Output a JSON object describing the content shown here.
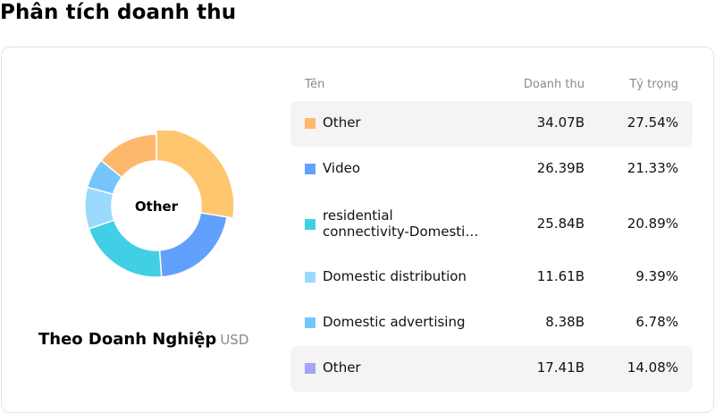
{
  "page": {
    "title": "Phân tích doanh thu"
  },
  "donut": {
    "center_label": "Other",
    "caption_title": "Theo Doanh Nghiệp",
    "caption_unit": "USD"
  },
  "table": {
    "headers": {
      "name": "Tên",
      "revenue": "Doanh thu",
      "share": "Tỷ trọng"
    },
    "rows": [
      {
        "name": "Other",
        "name_line2": "",
        "revenue": "34.07B",
        "share": "27.54%",
        "color": "#fdb86b",
        "highlighted": true
      },
      {
        "name": "Video",
        "name_line2": "",
        "revenue": "26.39B",
        "share": "21.33%",
        "color": "#62a0fd",
        "highlighted": false
      },
      {
        "name": "residential",
        "name_line2": "connectivity-Domesti…",
        "revenue": "25.84B",
        "share": "20.89%",
        "color": "#41cfe6",
        "highlighted": false
      },
      {
        "name": "Domestic distribution",
        "name_line2": "",
        "revenue": "11.61B",
        "share": "9.39%",
        "color": "#9adafc",
        "highlighted": false
      },
      {
        "name": "Domestic advertising",
        "name_line2": "",
        "revenue": "8.38B",
        "share": "6.78%",
        "color": "#76c4fc",
        "highlighted": false
      },
      {
        "name": "Other",
        "name_line2": "",
        "revenue": "17.41B",
        "share": "14.08%",
        "color": "#a7a4f8",
        "highlighted": true
      }
    ]
  },
  "chart_data": {
    "type": "pie",
    "subtype": "donut",
    "title": "Theo Doanh Nghiệp",
    "unit": "USD",
    "center_label": "Other",
    "categories": [
      "Other",
      "Video",
      "residential connectivity-Domesti…",
      "Domestic distribution",
      "Domestic advertising",
      "Other"
    ],
    "values": [
      34.07,
      26.39,
      25.84,
      11.61,
      8.38,
      17.41
    ],
    "value_labels": [
      "34.07B",
      "26.39B",
      "25.84B",
      "11.61B",
      "8.38B",
      "17.41B"
    ],
    "percentages": [
      27.54,
      21.33,
      20.89,
      9.39,
      6.78,
      14.08
    ],
    "slice_colors": [
      "#ffc670",
      "#62a0fd",
      "#41cfe6",
      "#9adafc",
      "#76c4fc",
      "#fdb86b"
    ],
    "highlighted_index": 0
  }
}
